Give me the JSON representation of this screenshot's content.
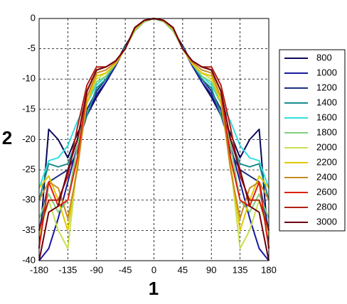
{
  "chart_data": {
    "type": "line",
    "xlabel": "1",
    "ylabel": "2",
    "x": [
      -180,
      -165,
      -150,
      -135,
      -120,
      -105,
      -90,
      -75,
      -60,
      -45,
      -30,
      -15,
      0,
      15,
      30,
      45,
      60,
      75,
      90,
      105,
      120,
      135,
      150,
      165,
      180
    ],
    "xlim": [
      -180,
      180
    ],
    "xticks": [
      -180,
      -135,
      -90,
      -45,
      0,
      45,
      90,
      135,
      180
    ],
    "ylim": [
      -40,
      0
    ],
    "yticks": [
      0,
      -5,
      -10,
      -15,
      -20,
      -25,
      -30,
      -35,
      -40
    ],
    "grid": true,
    "legend": "right",
    "series": [
      {
        "name": "800",
        "color": "#0a0a5a",
        "values": [
          -38,
          -18.3,
          -20,
          -23,
          -19,
          -16,
          -13,
          -10.5,
          -7.5,
          -4.5,
          -2,
          -0.5,
          0,
          -0.5,
          -2,
          -4.5,
          -7.5,
          -10.5,
          -13,
          -16,
          -19,
          -23,
          -20,
          -18.3,
          -38
        ]
      },
      {
        "name": "1000",
        "color": "#1a1aa0",
        "values": [
          -40,
          -38,
          -33,
          -27,
          -21,
          -16,
          -12.5,
          -10.5,
          -7.8,
          -4.8,
          -2,
          -0.5,
          0,
          -0.5,
          -2,
          -4.8,
          -7.8,
          -10.5,
          -12.5,
          -16,
          -21,
          -27,
          -33,
          -38,
          -40
        ]
      },
      {
        "name": "1200",
        "color": "#1a2f80",
        "values": [
          -35,
          -27,
          -26,
          -25,
          -22,
          -15,
          -12,
          -10,
          -7.5,
          -4.8,
          -2,
          -0.5,
          0,
          -0.5,
          -2,
          -4.8,
          -7.5,
          -10,
          -12,
          -15,
          -22,
          -25,
          -26,
          -27,
          -35
        ]
      },
      {
        "name": "1400",
        "color": "#1a8c8c",
        "values": [
          -30,
          -24,
          -24.5,
          -24,
          -20,
          -16,
          -11.5,
          -10,
          -7.5,
          -4.8,
          -2,
          -0.5,
          0,
          -0.5,
          -2,
          -4.8,
          -7.5,
          -10,
          -11.5,
          -16,
          -20,
          -24,
          -24.5,
          -24,
          -30
        ]
      },
      {
        "name": "1600",
        "color": "#30e0e0",
        "values": [
          -28,
          -23.5,
          -23,
          -21,
          -17,
          -14,
          -11,
          -9.5,
          -7.5,
          -4.8,
          -2,
          -0.5,
          0,
          -0.5,
          -2,
          -4.8,
          -7.5,
          -9.5,
          -11,
          -14,
          -17,
          -21,
          -23,
          -23.5,
          -28
        ]
      },
      {
        "name": "1800",
        "color": "#80d080",
        "values": [
          -33,
          -29,
          -32,
          -30,
          -21,
          -14,
          -10.5,
          -9.5,
          -7.5,
          -5,
          -2,
          -0.5,
          0,
          -0.5,
          -2,
          -5,
          -7.5,
          -9.5,
          -10.5,
          -14,
          -21,
          -30,
          -32,
          -29,
          -33
        ]
      },
      {
        "name": "2000",
        "color": "#c8e050",
        "values": [
          -36,
          -30,
          -35,
          -38,
          -24,
          -13,
          -10,
          -9,
          -7.5,
          -5,
          -1.8,
          -0.4,
          0,
          -0.4,
          -1.8,
          -5,
          -7.5,
          -9,
          -10,
          -13,
          -24,
          -38,
          -35,
          -30,
          -36
        ]
      },
      {
        "name": "2200",
        "color": "#e0c800",
        "values": [
          -28,
          -26,
          -30,
          -35,
          -24,
          -14,
          -9.5,
          -9,
          -7.5,
          -5,
          -1.8,
          -0.4,
          0,
          -0.4,
          -1.8,
          -5,
          -7.5,
          -9,
          -9.5,
          -14,
          -24,
          -35,
          -30,
          -26,
          -28
        ]
      },
      {
        "name": "2400",
        "color": "#c88a20",
        "values": [
          -30,
          -27,
          -28,
          -33,
          -25,
          -13,
          -9,
          -8.5,
          -7.2,
          -5,
          -1.6,
          -0.3,
          0,
          -0.3,
          -1.6,
          -5,
          -7.2,
          -8.5,
          -9,
          -13,
          -25,
          -33,
          -28,
          -27,
          -30
        ]
      },
      {
        "name": "2600",
        "color": "#e02010",
        "values": [
          -38,
          -27,
          -31,
          -30,
          -23,
          -12,
          -8.5,
          -8,
          -7,
          -5,
          -1.5,
          -0.3,
          0,
          -0.3,
          -1.5,
          -5,
          -7,
          -8,
          -8.5,
          -12,
          -23,
          -30,
          -31,
          -27,
          -38
        ]
      },
      {
        "name": "2800",
        "color": "#b02010",
        "values": [
          -35,
          -30,
          -30,
          -26,
          -18,
          -11,
          -8,
          -8,
          -7,
          -5,
          -1.5,
          -0.3,
          0,
          -0.3,
          -1.5,
          -5,
          -7,
          -8,
          -8,
          -11,
          -18,
          -26,
          -30,
          -30,
          -35
        ]
      },
      {
        "name": "3000",
        "color": "#700010",
        "values": [
          -40,
          -32,
          -31,
          -25,
          -20,
          -12,
          -8.5,
          -8,
          -7,
          -5,
          -1.5,
          -0.3,
          0,
          -0.3,
          -1.5,
          -5,
          -7,
          -8,
          -8.5,
          -12,
          -20,
          -25,
          -31,
          -32,
          -40
        ]
      }
    ]
  }
}
